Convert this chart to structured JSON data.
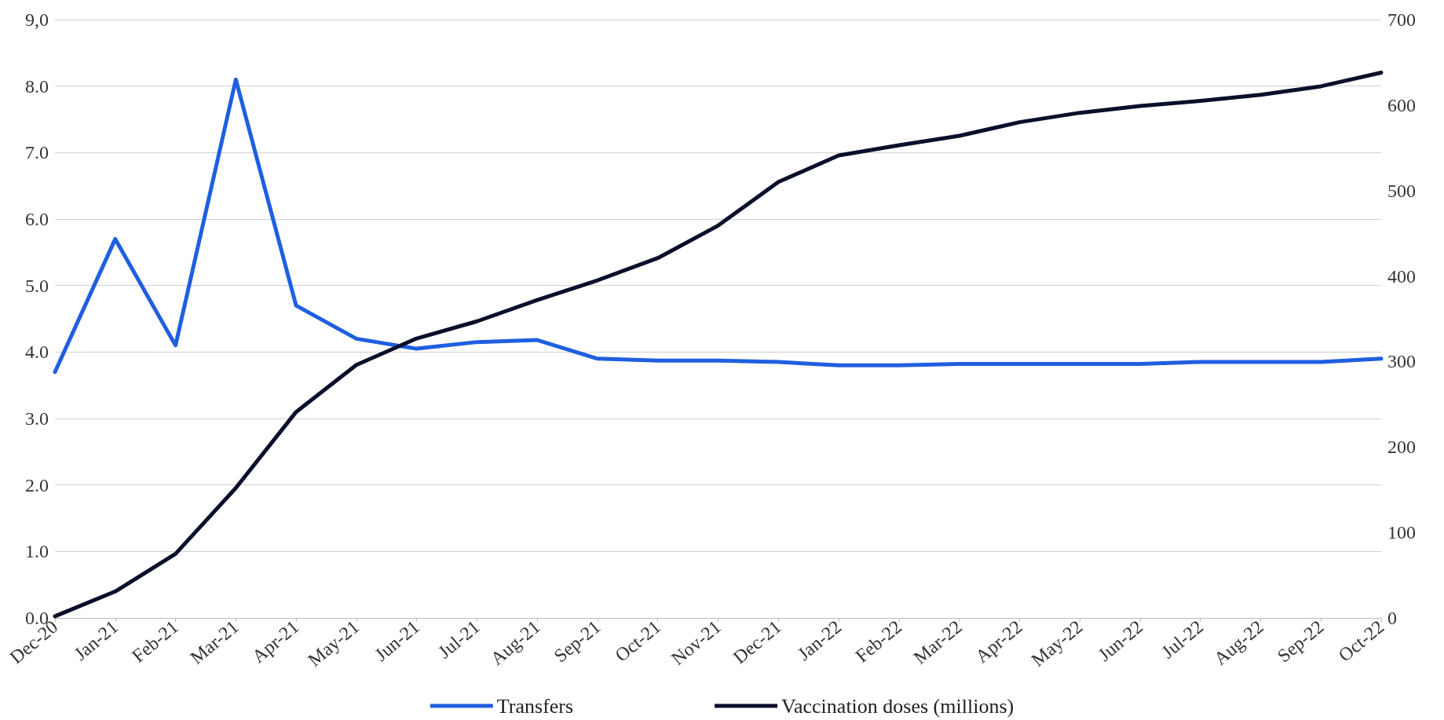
{
  "chart_data": {
    "type": "line",
    "categories": [
      "Dec-20",
      "Jan-21",
      "Feb-21",
      "Mar-21",
      "Apr-21",
      "May-21",
      "Jun-21",
      "Jul-21",
      "Aug-21",
      "Sep-21",
      "Oct-21",
      "Nov-21",
      "Dec-21",
      "Jan-22",
      "Feb-22",
      "Mar-22",
      "Apr-22",
      "May-22",
      "Jun-22",
      "Jul-22",
      "Aug-22",
      "Sep-22",
      "Oct-22"
    ],
    "series": [
      {
        "name": "Transfers",
        "color": "#1f5fe0",
        "values": [
          3.7,
          5.7,
          4.1,
          8.1,
          4.7,
          4.2,
          4.05,
          4.15,
          4.18,
          3.9,
          3.87,
          3.87,
          3.85,
          3.8,
          3.8,
          3.82,
          3.82,
          3.82,
          3.82,
          3.85,
          3.85,
          3.85,
          3.9
        ]
      },
      {
        "name": "Vaccination doses (millions)",
        "color": "#0a0f2a",
        "axis": "y2",
        "values": [
          2,
          31,
          75,
          152,
          241,
          296,
          327,
          347,
          372,
          395,
          421,
          459,
          510,
          541,
          553,
          564,
          580,
          591,
          599,
          605,
          612,
          622,
          638
        ]
      }
    ],
    "ylim": [
      0,
      9
    ],
    "yticks": [
      {
        "value": 0,
        "label": "0.0"
      },
      {
        "value": 1,
        "label": "1.0"
      },
      {
        "value": 2,
        "label": "2.0"
      },
      {
        "value": 3,
        "label": "3.0"
      },
      {
        "value": 4,
        "label": "4.0"
      },
      {
        "value": 5,
        "label": "5.0"
      },
      {
        "value": 6,
        "label": "6.0"
      },
      {
        "value": 7,
        "label": "7.0"
      },
      {
        "value": 8,
        "label": "8.0"
      },
      {
        "value": 9,
        "label": "9,0"
      }
    ],
    "y2lim": [
      0,
      700
    ],
    "y2ticks": [
      0,
      100,
      200,
      300,
      400,
      500,
      600,
      700
    ],
    "grid": "y",
    "legend": "bottom",
    "marker": "none",
    "line_style": "solid"
  }
}
